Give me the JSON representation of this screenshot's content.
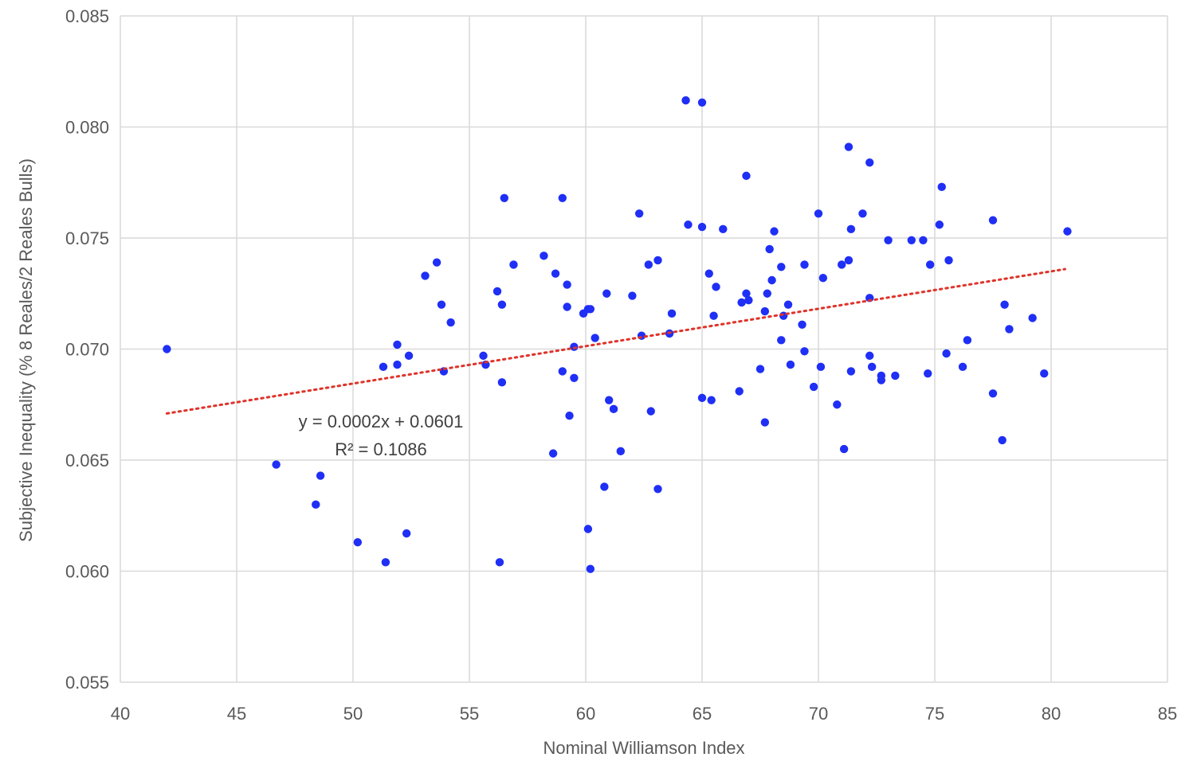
{
  "chart_data": {
    "type": "scatter",
    "xlabel": "Nominal Williamson Index",
    "ylabel": "Subjective Inequality (% 8 Reales/2 Reales Bulls)",
    "xlim": [
      40,
      85
    ],
    "ylim": [
      0.055,
      0.085
    ],
    "x_ticks": [
      "40",
      "45",
      "50",
      "55",
      "60",
      "65",
      "70",
      "75",
      "80",
      "85"
    ],
    "y_ticks": [
      "0.055",
      "0.060",
      "0.065",
      "0.070",
      "0.075",
      "0.080",
      "0.085"
    ],
    "grid": true,
    "colors": {
      "points": "#1f2ff5",
      "trendline": "#e0332a",
      "grid": "#d9d9d9"
    },
    "trendline": {
      "type": "linear",
      "style": "dotted",
      "equation": "y = 0.0002x + 0.0601",
      "r_squared": "R² = 0.1086",
      "x_range": [
        42,
        80.6
      ],
      "y_range": [
        0.0671,
        0.0736
      ]
    },
    "points": [
      [
        42.0,
        0.07
      ],
      [
        46.7,
        0.0648
      ],
      [
        48.4,
        0.063
      ],
      [
        48.6,
        0.0643
      ],
      [
        50.2,
        0.0613
      ],
      [
        51.3,
        0.0692
      ],
      [
        51.4,
        0.0604
      ],
      [
        51.9,
        0.0702
      ],
      [
        51.9,
        0.0693
      ],
      [
        52.3,
        0.0617
      ],
      [
        52.4,
        0.0697
      ],
      [
        53.1,
        0.0733
      ],
      [
        53.6,
        0.0739
      ],
      [
        53.8,
        0.072
      ],
      [
        53.9,
        0.069
      ],
      [
        54.2,
        0.0712
      ],
      [
        55.6,
        0.0697
      ],
      [
        55.7,
        0.0693
      ],
      [
        56.2,
        0.0726
      ],
      [
        56.3,
        0.0604
      ],
      [
        56.4,
        0.0685
      ],
      [
        56.4,
        0.072
      ],
      [
        56.5,
        0.0768
      ],
      [
        56.9,
        0.0738
      ],
      [
        58.2,
        0.0742
      ],
      [
        58.6,
        0.0653
      ],
      [
        58.7,
        0.0734
      ],
      [
        59.0,
        0.0768
      ],
      [
        59.0,
        0.069
      ],
      [
        59.2,
        0.0729
      ],
      [
        59.2,
        0.0719
      ],
      [
        59.3,
        0.067
      ],
      [
        59.5,
        0.0701
      ],
      [
        59.5,
        0.0687
      ],
      [
        59.9,
        0.0716
      ],
      [
        60.1,
        0.0718
      ],
      [
        60.1,
        0.0619
      ],
      [
        60.2,
        0.0601
      ],
      [
        60.2,
        0.0718
      ],
      [
        60.4,
        0.0705
      ],
      [
        60.8,
        0.0638
      ],
      [
        60.9,
        0.0725
      ],
      [
        61.0,
        0.0677
      ],
      [
        61.2,
        0.0673
      ],
      [
        61.5,
        0.0654
      ],
      [
        62.0,
        0.0724
      ],
      [
        62.3,
        0.0761
      ],
      [
        62.4,
        0.0706
      ],
      [
        62.7,
        0.0738
      ],
      [
        62.8,
        0.0672
      ],
      [
        63.1,
        0.074
      ],
      [
        63.1,
        0.0637
      ],
      [
        63.6,
        0.0707
      ],
      [
        63.7,
        0.0716
      ],
      [
        64.3,
        0.0812
      ],
      [
        64.4,
        0.0756
      ],
      [
        65.0,
        0.0811
      ],
      [
        65.0,
        0.0755
      ],
      [
        65.0,
        0.0678
      ],
      [
        65.3,
        0.0734
      ],
      [
        65.4,
        0.0677
      ],
      [
        65.5,
        0.0715
      ],
      [
        65.6,
        0.0728
      ],
      [
        65.9,
        0.0754
      ],
      [
        66.6,
        0.0681
      ],
      [
        66.7,
        0.0721
      ],
      [
        66.9,
        0.0778
      ],
      [
        66.9,
        0.0725
      ],
      [
        67.0,
        0.0722
      ],
      [
        67.5,
        0.0691
      ],
      [
        67.7,
        0.0667
      ],
      [
        67.7,
        0.0717
      ],
      [
        67.8,
        0.0725
      ],
      [
        67.9,
        0.0745
      ],
      [
        68.0,
        0.0731
      ],
      [
        68.1,
        0.0753
      ],
      [
        68.4,
        0.0737
      ],
      [
        68.4,
        0.0704
      ],
      [
        68.5,
        0.0715
      ],
      [
        68.7,
        0.072
      ],
      [
        68.8,
        0.0693
      ],
      [
        69.3,
        0.0711
      ],
      [
        69.4,
        0.0699
      ],
      [
        69.4,
        0.0738
      ],
      [
        69.8,
        0.0683
      ],
      [
        70.0,
        0.0761
      ],
      [
        70.1,
        0.0692
      ],
      [
        70.2,
        0.0732
      ],
      [
        70.8,
        0.0675
      ],
      [
        71.0,
        0.0738
      ],
      [
        71.1,
        0.0655
      ],
      [
        71.3,
        0.0791
      ],
      [
        71.3,
        0.074
      ],
      [
        71.4,
        0.0754
      ],
      [
        71.4,
        0.069
      ],
      [
        71.9,
        0.0761
      ],
      [
        72.2,
        0.0784
      ],
      [
        72.2,
        0.0723
      ],
      [
        72.2,
        0.0697
      ],
      [
        72.3,
        0.0692
      ],
      [
        72.7,
        0.0688
      ],
      [
        72.7,
        0.0686
      ],
      [
        73.0,
        0.0749
      ],
      [
        73.3,
        0.0688
      ],
      [
        74.0,
        0.0749
      ],
      [
        74.5,
        0.0749
      ],
      [
        74.7,
        0.0689
      ],
      [
        74.8,
        0.0738
      ],
      [
        75.2,
        0.0756
      ],
      [
        75.3,
        0.0773
      ],
      [
        75.5,
        0.0698
      ],
      [
        75.6,
        0.074
      ],
      [
        76.2,
        0.0692
      ],
      [
        76.4,
        0.0704
      ],
      [
        77.5,
        0.0758
      ],
      [
        77.5,
        0.068
      ],
      [
        77.9,
        0.0659
      ],
      [
        78.0,
        0.072
      ],
      [
        78.2,
        0.0709
      ],
      [
        79.2,
        0.0714
      ],
      [
        79.7,
        0.0689
      ],
      [
        80.7,
        0.0753
      ]
    ]
  }
}
